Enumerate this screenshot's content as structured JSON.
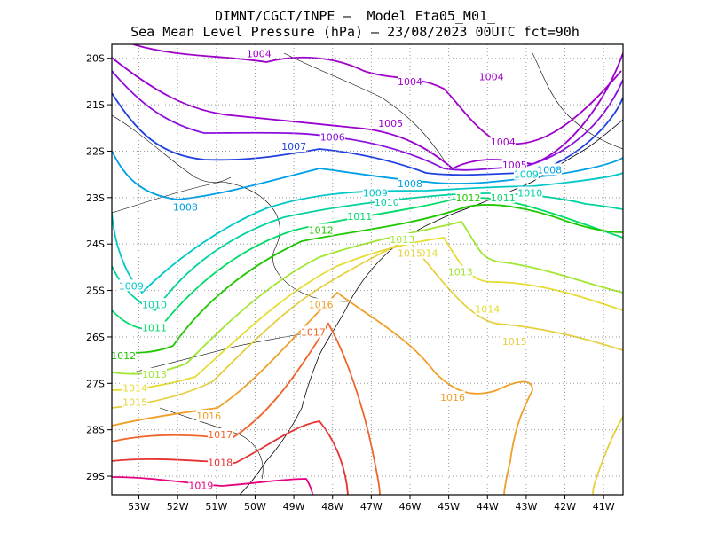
{
  "title_line1": "DIMNT/CGCT/INPE –  Model Eta05_M01_",
  "title_line2": "Sea Mean Level Pressure (hPa) – 23/08/2023 00UTC fct=90h",
  "lon_ticks": [
    "53W",
    "52W",
    "51W",
    "50W",
    "49W",
    "48W",
    "47W",
    "46W",
    "45W",
    "44W",
    "43W",
    "42W",
    "41W"
  ],
  "lat_ticks": [
    "20S",
    "21S",
    "22S",
    "23S",
    "24S",
    "25S",
    "26S",
    "27S",
    "28S",
    "29S"
  ],
  "map_data": {
    "type": "contour",
    "variable": "Sea Mean Level Pressure (hPa)",
    "lon_range": [
      -53.7,
      -40.5
    ],
    "lat_range": [
      -29.4,
      -19.7
    ],
    "contour_interval": 1,
    "level_colors": {
      "1004": "#a000c8",
      "1005": "#9a00d0",
      "1006": "#8b10dc",
      "1007": "#2040e0",
      "1008": "#00a0e6",
      "1009": "#00c8c8",
      "1010": "#00d2a0",
      "1011": "#00dc6a",
      "1012": "#20c800",
      "1013": "#a0e632",
      "1014": "#e6dc32",
      "1015": "#e6d040",
      "1016": "#f0a028",
      "1017": "#f06428",
      "1018": "#e63232",
      "1019": "#e6007d"
    },
    "contour_labels": [
      {
        "level": "1004",
        "lon": -49.9,
        "lat": -19.9
      },
      {
        "level": "1004",
        "lon": -46.0,
        "lat": -20.5
      },
      {
        "level": "1004",
        "lon": -43.9,
        "lat": -20.4
      },
      {
        "level": "1005",
        "lon": -46.5,
        "lat": -21.4
      },
      {
        "level": "1004",
        "lon": -43.6,
        "lat": -21.8
      },
      {
        "level": "1005",
        "lon": -43.3,
        "lat": -22.3
      },
      {
        "level": "1006",
        "lon": -48.0,
        "lat": -21.7
      },
      {
        "level": "1007",
        "lon": -49.0,
        "lat": -21.9
      },
      {
        "level": "1008",
        "lon": -51.8,
        "lat": -23.2
      },
      {
        "level": "1008",
        "lon": -46.0,
        "lat": -22.7
      },
      {
        "level": "1008",
        "lon": -42.4,
        "lat": -22.4
      },
      {
        "level": "1009",
        "lon": -46.9,
        "lat": -22.9
      },
      {
        "level": "1009",
        "lon": -43.0,
        "lat": -22.5
      },
      {
        "level": "1009",
        "lon": -53.2,
        "lat": -24.9
      },
      {
        "level": "1010",
        "lon": -46.6,
        "lat": -23.1
      },
      {
        "level": "1010",
        "lon": -42.9,
        "lat": -22.9
      },
      {
        "level": "1010",
        "lon": -52.6,
        "lat": -25.3
      },
      {
        "level": "1011",
        "lon": -47.3,
        "lat": -23.4
      },
      {
        "level": "1011",
        "lon": -43.6,
        "lat": -23.0
      },
      {
        "level": "1011",
        "lon": -52.6,
        "lat": -25.8
      },
      {
        "level": "1012",
        "lon": -48.3,
        "lat": -23.7
      },
      {
        "level": "1012",
        "lon": -44.5,
        "lat": -23.0
      },
      {
        "level": "1012",
        "lon": -53.4,
        "lat": -26.4
      },
      {
        "level": "1013",
        "lon": -46.2,
        "lat": -23.9
      },
      {
        "level": "1013",
        "lon": -44.7,
        "lat": -24.6
      },
      {
        "level": "1013",
        "lon": -52.6,
        "lat": -26.8
      },
      {
        "level": "1014",
        "lon": -45.6,
        "lat": -24.2
      },
      {
        "level": "1014",
        "lon": -44.0,
        "lat": -25.4
      },
      {
        "level": "1014",
        "lon": -53.1,
        "lat": -27.1
      },
      {
        "level": "1015",
        "lon": -46.0,
        "lat": -24.2
      },
      {
        "level": "1015",
        "lon": -43.3,
        "lat": -26.1
      },
      {
        "level": "1015",
        "lon": -53.1,
        "lat": -27.4
      },
      {
        "level": "1016",
        "lon": -48.3,
        "lat": -25.3
      },
      {
        "level": "1016",
        "lon": -44.9,
        "lat": -27.3
      },
      {
        "level": "1016",
        "lon": -51.2,
        "lat": -27.7
      },
      {
        "level": "1017",
        "lon": -48.5,
        "lat": -25.9
      },
      {
        "level": "1017",
        "lon": -50.9,
        "lat": -28.1
      },
      {
        "level": "1018",
        "lon": -50.9,
        "lat": -28.7
      },
      {
        "level": "1019",
        "lon": -51.4,
        "lat": -29.2
      }
    ]
  }
}
